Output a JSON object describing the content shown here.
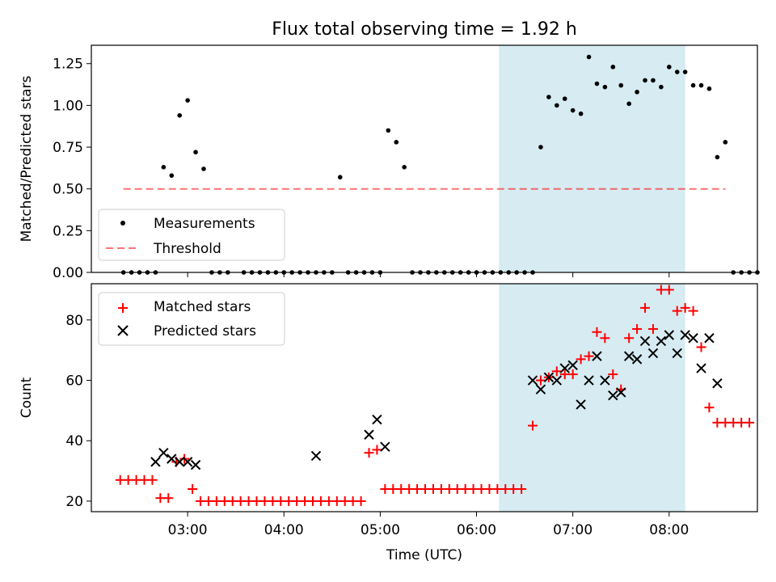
{
  "figure": {
    "title": "Flux total observing time = 1.92 h"
  },
  "colors": {
    "highlight": "#add8e6",
    "measurement": "#000000",
    "threshold": "#ff0000",
    "matched": "#ff0000",
    "predicted": "#000000"
  },
  "chart_data": [
    {
      "type": "scatter",
      "ylabel": "Matched/Predicted stars",
      "ylim": [
        0,
        1.36
      ],
      "y_ticks": [
        0.0,
        0.25,
        0.5,
        0.75,
        1.0,
        1.25
      ],
      "y_tick_labels": [
        "0.00",
        "0.25",
        "0.50",
        "0.75",
        "1.00",
        "1.25"
      ],
      "xlim": [
        "02:00",
        "08:55"
      ],
      "legend": {
        "position": "lower-left",
        "entries": [
          "Measurements",
          "Threshold"
        ]
      },
      "highlight_span": [
        "06:14",
        "08:10"
      ],
      "series": [
        {
          "name": "Measurements",
          "marker": "dot",
          "points": [
            [
              "02:20",
              0
            ],
            [
              "02:25",
              0
            ],
            [
              "02:30",
              0
            ],
            [
              "02:35",
              0
            ],
            [
              "02:40",
              0
            ],
            [
              "02:45",
              0.63
            ],
            [
              "02:50",
              0.58
            ],
            [
              "02:55",
              0.94
            ],
            [
              "03:00",
              1.03
            ],
            [
              "03:05",
              0.72
            ],
            [
              "03:10",
              0.62
            ],
            [
              "03:15",
              0
            ],
            [
              "03:20",
              0
            ],
            [
              "03:25",
              0
            ],
            [
              "03:35",
              0
            ],
            [
              "03:40",
              0
            ],
            [
              "03:45",
              0
            ],
            [
              "03:50",
              0
            ],
            [
              "03:55",
              0
            ],
            [
              "04:00",
              0
            ],
            [
              "04:05",
              0
            ],
            [
              "04:10",
              0
            ],
            [
              "04:15",
              0
            ],
            [
              "04:20",
              0
            ],
            [
              "04:25",
              0
            ],
            [
              "04:30",
              0
            ],
            [
              "04:35",
              0.57
            ],
            [
              "04:40",
              0
            ],
            [
              "04:45",
              0
            ],
            [
              "04:50",
              0
            ],
            [
              "04:55",
              0
            ],
            [
              "05:00",
              0
            ],
            [
              "05:05",
              0.85
            ],
            [
              "05:10",
              0.78
            ],
            [
              "05:15",
              0.63
            ],
            [
              "05:20",
              0
            ],
            [
              "05:25",
              0
            ],
            [
              "05:30",
              0
            ],
            [
              "05:35",
              0
            ],
            [
              "05:40",
              0
            ],
            [
              "05:45",
              0
            ],
            [
              "05:50",
              0
            ],
            [
              "05:55",
              0
            ],
            [
              "06:00",
              0
            ],
            [
              "06:05",
              0
            ],
            [
              "06:10",
              0
            ],
            [
              "06:15",
              0
            ],
            [
              "06:20",
              0
            ],
            [
              "06:25",
              0
            ],
            [
              "06:30",
              0
            ],
            [
              "06:35",
              0
            ],
            [
              "06:40",
              0.75
            ],
            [
              "06:45",
              1.05
            ],
            [
              "06:50",
              1.0
            ],
            [
              "06:55",
              1.04
            ],
            [
              "07:00",
              0.97
            ],
            [
              "07:05",
              0.95
            ],
            [
              "07:10",
              1.29
            ],
            [
              "07:15",
              1.13
            ],
            [
              "07:20",
              1.11
            ],
            [
              "07:25",
              1.23
            ],
            [
              "07:30",
              1.12
            ],
            [
              "07:35",
              1.01
            ],
            [
              "07:40",
              1.08
            ],
            [
              "07:45",
              1.15
            ],
            [
              "07:50",
              1.15
            ],
            [
              "07:55",
              1.11
            ],
            [
              "08:00",
              1.23
            ],
            [
              "08:05",
              1.2
            ],
            [
              "08:10",
              1.2
            ],
            [
              "08:15",
              1.12
            ],
            [
              "08:20",
              1.12
            ],
            [
              "08:25",
              1.1
            ],
            [
              "08:30",
              0.69
            ],
            [
              "08:35",
              0.78
            ],
            [
              "08:40",
              0
            ],
            [
              "08:45",
              0
            ],
            [
              "08:50",
              0
            ],
            [
              "08:55",
              0
            ]
          ]
        },
        {
          "name": "Threshold",
          "style": "dashed-line",
          "x": [
            "02:20",
            "08:35"
          ],
          "y": [
            0.5,
            0.5
          ]
        }
      ]
    },
    {
      "type": "scatter",
      "xlabel": "Time (UTC)",
      "ylabel": "Count",
      "ylim": [
        16.5,
        92
      ],
      "y_ticks": [
        20,
        40,
        60,
        80
      ],
      "y_tick_labels": [
        "20",
        "40",
        "60",
        "80"
      ],
      "xlim": [
        "02:00",
        "08:55"
      ],
      "x_ticks": [
        "03:00",
        "04:00",
        "05:00",
        "06:00",
        "07:00",
        "08:00"
      ],
      "x_tick_labels": [
        "03:00",
        "04:00",
        "05:00",
        "06:00",
        "07:00",
        "08:00"
      ],
      "legend": {
        "position": "upper-left",
        "entries": [
          "Matched stars",
          "Predicted stars"
        ]
      },
      "highlight_span": [
        "06:14",
        "08:10"
      ],
      "series": [
        {
          "name": "Matched stars",
          "marker": "plus",
          "points": [
            [
              "02:18",
              27
            ],
            [
              "02:23",
              27
            ],
            [
              "02:28",
              27
            ],
            [
              "02:33",
              27
            ],
            [
              "02:38",
              27
            ],
            [
              "02:43",
              21
            ],
            [
              "02:48",
              21
            ],
            [
              "02:53",
              33
            ],
            [
              "02:58",
              34
            ],
            [
              "03:03",
              24
            ],
            [
              "03:08",
              20
            ],
            [
              "03:13",
              20
            ],
            [
              "03:18",
              20
            ],
            [
              "03:23",
              20
            ],
            [
              "03:28",
              20
            ],
            [
              "03:33",
              20
            ],
            [
              "03:38",
              20
            ],
            [
              "03:43",
              20
            ],
            [
              "03:48",
              20
            ],
            [
              "03:53",
              20
            ],
            [
              "03:58",
              20
            ],
            [
              "04:03",
              20
            ],
            [
              "04:08",
              20
            ],
            [
              "04:13",
              20
            ],
            [
              "04:18",
              20
            ],
            [
              "04:23",
              20
            ],
            [
              "04:28",
              20
            ],
            [
              "04:33",
              20
            ],
            [
              "04:38",
              20
            ],
            [
              "04:43",
              20
            ],
            [
              "04:48",
              20
            ],
            [
              "04:53",
              36
            ],
            [
              "04:58",
              37
            ],
            [
              "05:03",
              24
            ],
            [
              "05:08",
              24
            ],
            [
              "05:13",
              24
            ],
            [
              "05:18",
              24
            ],
            [
              "05:23",
              24
            ],
            [
              "05:28",
              24
            ],
            [
              "05:33",
              24
            ],
            [
              "05:38",
              24
            ],
            [
              "05:43",
              24
            ],
            [
              "05:48",
              24
            ],
            [
              "05:53",
              24
            ],
            [
              "05:58",
              24
            ],
            [
              "06:03",
              24
            ],
            [
              "06:08",
              24
            ],
            [
              "06:13",
              24
            ],
            [
              "06:18",
              24
            ],
            [
              "06:23",
              24
            ],
            [
              "06:28",
              24
            ],
            [
              "06:35",
              45
            ],
            [
              "06:40",
              60
            ],
            [
              "06:45",
              61
            ],
            [
              "06:50",
              63
            ],
            [
              "06:55",
              62
            ],
            [
              "07:00",
              62
            ],
            [
              "07:05",
              67
            ],
            [
              "07:10",
              68
            ],
            [
              "07:15",
              76
            ],
            [
              "07:20",
              74
            ],
            [
              "07:25",
              62
            ],
            [
              "07:30",
              57
            ],
            [
              "07:35",
              74
            ],
            [
              "07:40",
              77
            ],
            [
              "07:45",
              84
            ],
            [
              "07:50",
              77
            ],
            [
              "07:55",
              90
            ],
            [
              "08:00",
              90
            ],
            [
              "08:05",
              83
            ],
            [
              "08:10",
              84
            ],
            [
              "08:15",
              83
            ],
            [
              "08:20",
              71
            ],
            [
              "08:25",
              51
            ],
            [
              "08:30",
              46
            ],
            [
              "08:35",
              46
            ],
            [
              "08:40",
              46
            ],
            [
              "08:45",
              46
            ],
            [
              "08:50",
              46
            ]
          ]
        },
        {
          "name": "Predicted stars",
          "marker": "x",
          "points": [
            [
              "02:40",
              33
            ],
            [
              "02:45",
              36
            ],
            [
              "02:50",
              34
            ],
            [
              "02:55",
              33
            ],
            [
              "03:00",
              33
            ],
            [
              "03:05",
              32
            ],
            [
              "04:20",
              35
            ],
            [
              "04:53",
              42
            ],
            [
              "04:58",
              47
            ],
            [
              "05:03",
              38
            ],
            [
              "06:35",
              60
            ],
            [
              "06:40",
              57
            ],
            [
              "06:45",
              61
            ],
            [
              "06:50",
              60
            ],
            [
              "06:55",
              64
            ],
            [
              "07:00",
              65
            ],
            [
              "07:05",
              52
            ],
            [
              "07:10",
              60
            ],
            [
              "07:15",
              68
            ],
            [
              "07:20",
              60
            ],
            [
              "07:25",
              55
            ],
            [
              "07:30",
              56
            ],
            [
              "07:35",
              68
            ],
            [
              "07:40",
              67
            ],
            [
              "07:45",
              73
            ],
            [
              "07:50",
              69
            ],
            [
              "07:55",
              73
            ],
            [
              "08:00",
              75
            ],
            [
              "08:05",
              69
            ],
            [
              "08:10",
              75
            ],
            [
              "08:15",
              74
            ],
            [
              "08:20",
              64
            ],
            [
              "08:25",
              74
            ],
            [
              "08:30",
              59
            ]
          ]
        }
      ]
    }
  ]
}
